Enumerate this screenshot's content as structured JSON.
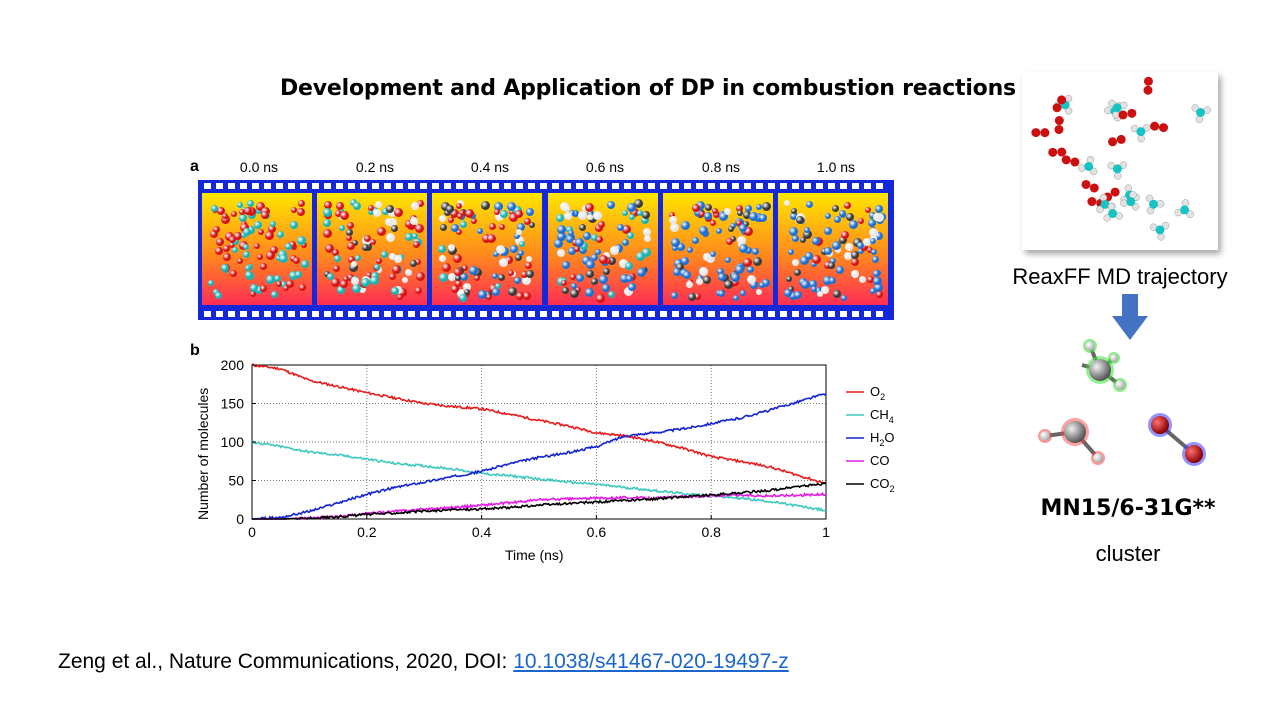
{
  "title": "Development and Application of DP in combustion reactions",
  "panel_a": {
    "letter": "a",
    "time_labels": [
      "0.0 ns",
      "0.2 ns",
      "0.4 ns",
      "0.6 ns",
      "0.8 ns",
      "1.0 ns"
    ]
  },
  "panel_b": {
    "letter": "b"
  },
  "right_panel": {
    "trajectory_label": "ReaxFF MD trajectory",
    "method_label": "MN15/6-31G**",
    "cluster_label": "cluster"
  },
  "citation": {
    "text": "Zeng et al., Nature Communications, 2020, DOI: ",
    "doi": "10.1038/s41467-020-19497-z"
  },
  "colors": {
    "O2": "#e81c1c",
    "CH4": "#3ec9c0",
    "H2O": "#1424d0",
    "CO": "#e619e6",
    "CO2": "#000000",
    "film": "#1428d9",
    "arrow": "#4472c4"
  },
  "chart_data": {
    "type": "line",
    "xlabel": "Time (ns)",
    "ylabel": "Number of molecules",
    "xlim": [
      0,
      1
    ],
    "ylim": [
      0,
      200
    ],
    "xticks": [
      0,
      0.2,
      0.4,
      0.6,
      0.8,
      1
    ],
    "yticks": [
      0,
      50,
      100,
      150,
      200
    ],
    "x_tick_labels": [
      "0",
      "0.2",
      "0.4",
      "0.6",
      "0.8",
      "1"
    ],
    "y_tick_labels": [
      "0",
      "50",
      "100",
      "150",
      "200"
    ],
    "grid": true,
    "legend": "right",
    "x": [
      0,
      0.05,
      0.1,
      0.15,
      0.2,
      0.25,
      0.3,
      0.35,
      0.4,
      0.45,
      0.5,
      0.55,
      0.6,
      0.65,
      0.7,
      0.75,
      0.8,
      0.85,
      0.9,
      0.95,
      1.0
    ],
    "series": [
      {
        "name": "O2",
        "color": "#e81c1c",
        "values": [
          200,
          195,
          180,
          172,
          164,
          157,
          150,
          146,
          143,
          136,
          128,
          121,
          112,
          108,
          101,
          92,
          81,
          75,
          68,
          57,
          46
        ]
      },
      {
        "name": "CH4",
        "color": "#3ec9c0",
        "values": [
          100,
          94,
          87,
          83,
          78,
          72,
          69,
          65,
          59,
          56,
          52,
          48,
          45,
          41,
          37,
          33,
          30,
          27,
          23,
          17,
          11
        ]
      },
      {
        "name": "H2O",
        "color": "#1424d0",
        "values": [
          0,
          2,
          10,
          21,
          32,
          41,
          48,
          55,
          62,
          72,
          80,
          86,
          94,
          108,
          112,
          117,
          124,
          131,
          141,
          152,
          163
        ]
      },
      {
        "name": "CO",
        "color": "#e619e6",
        "values": [
          0,
          0,
          1,
          3,
          7,
          10,
          13,
          15,
          18,
          21,
          25,
          26,
          27,
          28,
          27,
          29,
          30,
          31,
          30,
          31,
          32
        ]
      },
      {
        "name": "CO2",
        "color": "#000000",
        "values": [
          0,
          0,
          1,
          3,
          6,
          8,
          10,
          12,
          13,
          15,
          18,
          20,
          22,
          24,
          26,
          29,
          31,
          34,
          37,
          42,
          46
        ]
      }
    ],
    "legend_labels": [
      {
        "base": "O",
        "sub": "2"
      },
      {
        "base": "CH",
        "sub": "4"
      },
      {
        "base": "H",
        "sub": "2",
        "rest": "O"
      },
      {
        "base": "CO",
        "sub": ""
      },
      {
        "base": "CO",
        "sub": "2"
      }
    ]
  }
}
